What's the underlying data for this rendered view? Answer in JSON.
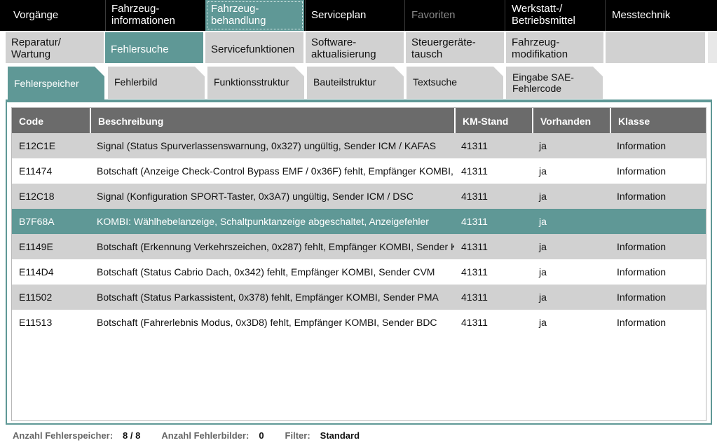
{
  "top_nav": [
    "Vorgänge",
    "Fahrzeug-\ninformationen",
    "Fahrzeug-\nbehandlung",
    "Serviceplan",
    "Favoriten",
    "Werkstatt-/\nBetriebsmittel",
    "Messtechnik"
  ],
  "sub_nav": [
    "Reparatur/\nWartung",
    "Fehlersuche",
    "Servicefunktionen",
    "Software-\naktualisierung",
    "Steuergeräte-\ntausch",
    "Fahrzeug-\nmodifikation",
    ""
  ],
  "tabs": [
    "Fehlerspeicher",
    "Fehlerbild",
    "Funktionsstruktur",
    "Bauteilstruktur",
    "Textsuche",
    "Eingabe SAE-\nFehlercode"
  ],
  "table": {
    "headers": [
      "Code",
      "Beschreibung",
      "KM-Stand",
      "Vorhanden",
      "Klasse"
    ],
    "rows": [
      [
        "E12C1E",
        "Signal (Status Spurverlassenswarnung, 0x327) ungültig, Sender ICM / KAFAS",
        "41311",
        "ja",
        "Information"
      ],
      [
        "E11474",
        "Botschaft (Anzeige Check-Control Bypass EMF / 0x36F) fehlt, Empfänger KOMBI,",
        "41311",
        "ja",
        "Information"
      ],
      [
        "E12C18",
        "Signal (Konfiguration SPORT-Taster, 0x3A7) ungültig, Sender ICM / DSC",
        "41311",
        "ja",
        "Information"
      ],
      [
        "B7F68A",
        "KOMBI: Wählhebelanzeige, Schaltpunktanzeige abgeschaltet, Anzeigefehler",
        "41311",
        "ja",
        ""
      ],
      [
        "E1149E",
        "Botschaft (Erkennung Verkehrszeichen, 0x287) fehlt, Empfänger KOMBI, Sender K",
        "41311",
        "ja",
        "Information"
      ],
      [
        "E114D4",
        "Botschaft (Status Cabrio Dach, 0x342) fehlt, Empfänger KOMBI, Sender CVM",
        "41311",
        "ja",
        "Information"
      ],
      [
        "E11502",
        "Botschaft (Status Parkassistent, 0x378) fehlt, Empfänger KOMBI, Sender PMA",
        "41311",
        "ja",
        "Information"
      ],
      [
        "E11513",
        "Botschaft (Fahrerlebnis Modus, 0x3D8) fehlt, Empfänger KOMBI, Sender BDC",
        "41311",
        "ja",
        "Information"
      ]
    ]
  },
  "footer": {
    "fehlerspeicher_label": "Anzahl Fehlerspeicher:",
    "fehlerspeicher_value": "8 / 8",
    "fehlerbilder_label": "Anzahl Fehlerbilder:",
    "fehlerbilder_value": "0",
    "filter_label": "Filter:",
    "filter_value": "Standard"
  },
  "colors": {
    "accent": "#5f9896",
    "nav_bg": "#000000",
    "header_bg": "#6b6b6b",
    "row_alt": "#d1d1d1"
  }
}
